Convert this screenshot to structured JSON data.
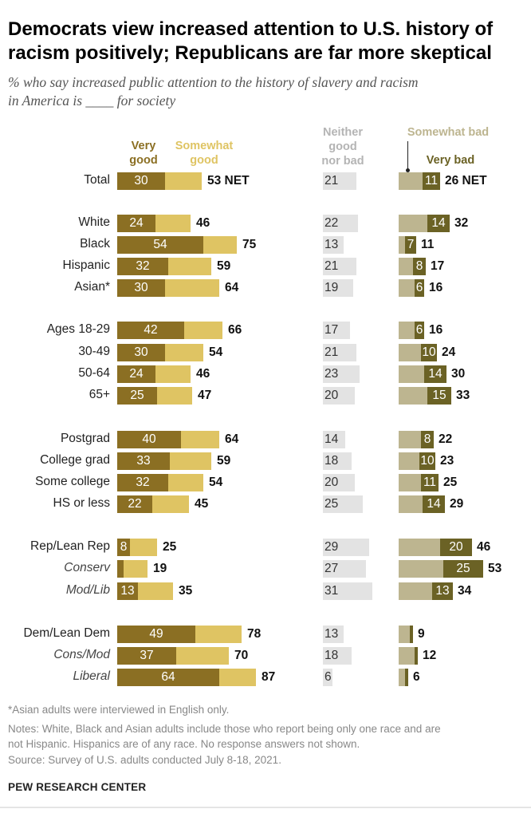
{
  "title": "Democrats view increased attention to U.S. history of racism positively; Republicans are far more skeptical",
  "title_line1": "Democrats view increased attention to U.S. history of",
  "title_line2": "racism positively; Republicans are far more skeptical",
  "subtitle_line1": "% who say increased public attention to the history of slavery and racism",
  "subtitle_line2": "in America is ____ for society",
  "headers": {
    "very_good": [
      "Very",
      "good"
    ],
    "somewhat_good": [
      "Somewhat",
      "good"
    ],
    "neither": [
      "Neither",
      "good",
      "nor bad"
    ],
    "somewhat_bad": "Somewhat bad",
    "very_bad": "Very bad"
  },
  "colors": {
    "very_good": "#8b6f23",
    "somewhat_good": "#dfc463",
    "neither": "#e3e3e3",
    "somewhat_bad": "#bdb590",
    "very_bad": "#6b6225",
    "neither_text": "#b4b4b4",
    "somewhat_bad_text": "#bdb590",
    "very_good_text": "#8b6f23",
    "somewhat_good_text": "#dfc463"
  },
  "notes": {
    "asterisk": "*Asian adults were interviewed in English only.",
    "notes_line1": "Notes: White, Black and Asian adults include those who report being only one race and are",
    "notes_line2": "not Hispanic. Hispanics are of any race. No response answers not shown.",
    "source": "Source: Survey of U.S. adults conducted July 8-18, 2021.",
    "org": "PEW RESEARCH CENTER"
  },
  "chart_data": {
    "type": "bar",
    "title": "Democrats view increased attention to U.S. history of racism positively; Republicans are far more skeptical",
    "subtitle": "% who say increased public attention to the history of slavery and racism in America is ____ for society",
    "series_names": [
      "Very good",
      "Somewhat good",
      "Neither good nor bad",
      "Somewhat bad",
      "Very bad"
    ],
    "rows": [
      {
        "label": "Total",
        "italic": false,
        "very_good": 30,
        "good_net": 53,
        "good_net_label": "53 NET",
        "neither": 21,
        "very_bad": 11,
        "bad_net": 26,
        "bad_net_label": "26 NET"
      },
      {
        "label": "White",
        "italic": false,
        "very_good": 24,
        "good_net": 46,
        "good_net_label": "46",
        "neither": 22,
        "very_bad": 14,
        "bad_net": 32,
        "bad_net_label": "32"
      },
      {
        "label": "Black",
        "italic": false,
        "very_good": 54,
        "good_net": 75,
        "good_net_label": "75",
        "neither": 13,
        "very_bad": 7,
        "bad_net": 11,
        "bad_net_label": "11"
      },
      {
        "label": "Hispanic",
        "italic": false,
        "very_good": 32,
        "good_net": 59,
        "good_net_label": "59",
        "neither": 21,
        "very_bad": 8,
        "bad_net": 17,
        "bad_net_label": "17"
      },
      {
        "label": "Asian*",
        "italic": false,
        "very_good": 30,
        "good_net": 64,
        "good_net_label": "64",
        "neither": 19,
        "very_bad": 6,
        "bad_net": 16,
        "bad_net_label": "16"
      },
      {
        "label": "Ages 18-29",
        "italic": false,
        "very_good": 42,
        "good_net": 66,
        "good_net_label": "66",
        "neither": 17,
        "very_bad": 6,
        "bad_net": 16,
        "bad_net_label": "16"
      },
      {
        "label": "30-49",
        "italic": false,
        "very_good": 30,
        "good_net": 54,
        "good_net_label": "54",
        "neither": 21,
        "very_bad": 10,
        "bad_net": 24,
        "bad_net_label": "24"
      },
      {
        "label": "50-64",
        "italic": false,
        "very_good": 24,
        "good_net": 46,
        "good_net_label": "46",
        "neither": 23,
        "very_bad": 14,
        "bad_net": 30,
        "bad_net_label": "30"
      },
      {
        "label": "65+",
        "italic": false,
        "very_good": 25,
        "good_net": 47,
        "good_net_label": "47",
        "neither": 20,
        "very_bad": 15,
        "bad_net": 33,
        "bad_net_label": "33"
      },
      {
        "label": "Postgrad",
        "italic": false,
        "very_good": 40,
        "good_net": 64,
        "good_net_label": "64",
        "neither": 14,
        "very_bad": 8,
        "bad_net": 22,
        "bad_net_label": "22"
      },
      {
        "label": "College grad",
        "italic": false,
        "very_good": 33,
        "good_net": 59,
        "good_net_label": "59",
        "neither": 18,
        "very_bad": 10,
        "bad_net": 23,
        "bad_net_label": "23"
      },
      {
        "label": "Some college",
        "italic": false,
        "very_good": 32,
        "good_net": 54,
        "good_net_label": "54",
        "neither": 20,
        "very_bad": 11,
        "bad_net": 25,
        "bad_net_label": "25"
      },
      {
        "label": "HS or less",
        "italic": false,
        "very_good": 22,
        "good_net": 45,
        "good_net_label": "45",
        "neither": 25,
        "very_bad": 14,
        "bad_net": 29,
        "bad_net_label": "29"
      },
      {
        "label": "Rep/Lean Rep",
        "italic": false,
        "very_good": 8,
        "good_net": 25,
        "good_net_label": "25",
        "neither": 29,
        "very_bad": 20,
        "bad_net": 46,
        "bad_net_label": "46"
      },
      {
        "label": "Conserv",
        "italic": true,
        "very_good": 4,
        "good_net": 19,
        "good_net_label": "19",
        "neither": 27,
        "very_bad": 25,
        "bad_net": 53,
        "bad_net_label": "53"
      },
      {
        "label": "Mod/Lib",
        "italic": true,
        "very_good": 13,
        "good_net": 35,
        "good_net_label": "35",
        "neither": 31,
        "very_bad": 13,
        "bad_net": 34,
        "bad_net_label": "34"
      },
      {
        "label": "Dem/Lean Dem",
        "italic": false,
        "very_good": 49,
        "good_net": 78,
        "good_net_label": "78",
        "neither": 13,
        "very_bad": 2,
        "bad_net": 9,
        "bad_net_label": "9"
      },
      {
        "label": "Cons/Mod",
        "italic": true,
        "very_good": 37,
        "good_net": 70,
        "good_net_label": "70",
        "neither": 18,
        "very_bad": 2,
        "bad_net": 12,
        "bad_net_label": "12"
      },
      {
        "label": "Liberal",
        "italic": true,
        "very_good": 64,
        "good_net": 87,
        "good_net_label": "87",
        "neither": 6,
        "very_bad": 2,
        "bad_net": 6,
        "bad_net_label": "6"
      }
    ],
    "show_very_good_label": [
      true,
      true,
      true,
      true,
      true,
      true,
      true,
      true,
      true,
      true,
      true,
      true,
      true,
      true,
      false,
      true,
      true,
      true,
      true
    ],
    "show_very_bad_label": [
      true,
      true,
      true,
      true,
      true,
      true,
      true,
      true,
      true,
      true,
      true,
      true,
      true,
      true,
      true,
      true,
      false,
      false,
      false
    ]
  }
}
